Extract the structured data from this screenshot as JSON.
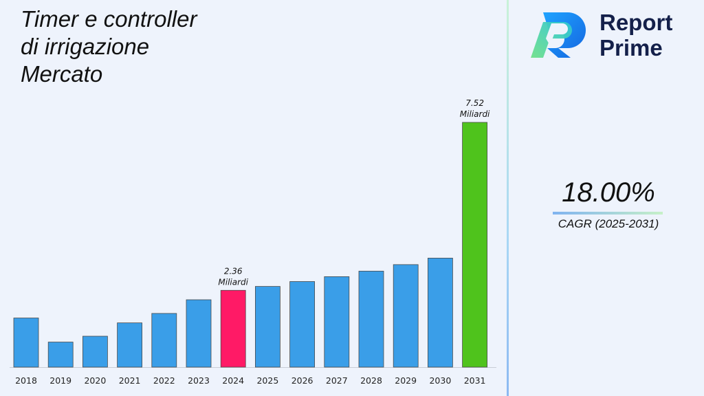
{
  "title_lines": [
    "Timer e controller",
    "di irrigazione",
    "Mercato"
  ],
  "brand": {
    "line1": "Report",
    "line2": "Prime"
  },
  "cagr": {
    "value": "18.00%",
    "label": "CAGR (2025-2031)"
  },
  "colors": {
    "bar": "#3a9ee8",
    "highlight_2024": "#ff1a66",
    "highlight_2031": "#4fc31c",
    "brand_dark": "#14204a"
  },
  "chart_data": {
    "type": "bar",
    "categories": [
      "2018",
      "2019",
      "2020",
      "2021",
      "2022",
      "2023",
      "2024",
      "2025",
      "2026",
      "2027",
      "2028",
      "2029",
      "2030",
      "2031"
    ],
    "values": [
      1.51,
      0.77,
      0.95,
      1.36,
      1.65,
      2.07,
      2.36,
      2.48,
      2.63,
      2.78,
      2.95,
      3.15,
      3.35,
      7.52
    ],
    "annotations": [
      {
        "category": "2024",
        "value_text": "2.36",
        "unit_text": "Miliardi"
      },
      {
        "category": "2031",
        "value_text": "7.52",
        "unit_text": "Miliardi"
      }
    ],
    "title": "Timer e controller di irrigazione Mercato",
    "xlabel": "",
    "ylabel": ""
  }
}
